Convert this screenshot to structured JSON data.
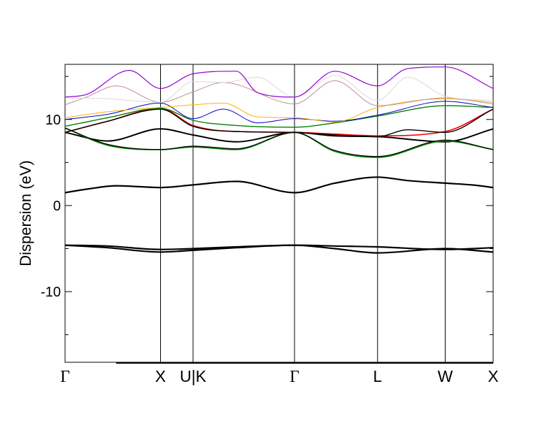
{
  "chart_data": {
    "type": "line",
    "title": "",
    "xlabel": "",
    "ylabel": "Dispersion (eV)",
    "ylim": [
      -18.2,
      16.4
    ],
    "xlim": [
      0,
      1
    ],
    "grid": false,
    "legend": "none",
    "y_ticks": [
      {
        "value": 10,
        "label": "10"
      },
      {
        "value": 0,
        "label": "0"
      },
      {
        "value": -10,
        "label": "-10"
      }
    ],
    "k_points": [
      {
        "pos": 0.0,
        "label": "Γ",
        "greek": true
      },
      {
        "pos": 0.223,
        "label": "X",
        "greek": false
      },
      {
        "pos": 0.299,
        "label": "U|K",
        "greek": false
      },
      {
        "pos": 0.536,
        "label": "Γ",
        "greek": true
      },
      {
        "pos": 0.73,
        "label": "L",
        "greek": false
      },
      {
        "pos": 0.888,
        "label": "W",
        "greek": false
      },
      {
        "pos": 1.0,
        "label": "X",
        "greek": false
      }
    ],
    "series": [
      {
        "color": "#000000",
        "width": 2.2,
        "x": [
          0,
          0.1,
          0.223,
          0.299,
          0.4,
          0.536,
          0.63,
          0.73,
          0.888,
          1.0
        ],
        "y": [
          -4.6,
          -4.9,
          -5.4,
          -5.2,
          -4.9,
          -4.6,
          -5.0,
          -5.5,
          -5.0,
          -5.4
        ]
      },
      {
        "color": "#000000",
        "width": 2.2,
        "x": [
          0,
          0.1,
          0.223,
          0.299,
          0.4,
          0.536,
          0.63,
          0.73,
          0.888,
          1.0
        ],
        "y": [
          -4.6,
          -4.7,
          -5.1,
          -5.0,
          -4.8,
          -4.6,
          -4.7,
          -4.8,
          -5.1,
          -4.9
        ]
      },
      {
        "color": "#000000",
        "width": 2.2,
        "x": [
          0,
          0.05,
          0.12,
          0.223,
          0.299,
          0.4,
          0.536,
          0.63,
          0.73,
          0.8,
          0.888,
          0.95,
          1.0
        ],
        "y": [
          1.5,
          1.9,
          2.3,
          2.1,
          2.4,
          2.8,
          1.5,
          2.6,
          3.3,
          2.9,
          2.6,
          2.4,
          2.1
        ]
      },
      {
        "color": "#000000",
        "width": 2.0,
        "x": [
          0,
          0.1,
          0.223,
          0.299,
          0.4,
          0.536,
          0.63,
          0.73,
          0.888,
          1.0
        ],
        "y": [
          8.5,
          7.5,
          8.9,
          8.2,
          7.4,
          8.5,
          8.1,
          8.0,
          7.4,
          8.9
        ]
      },
      {
        "color": "#008000",
        "width": 1.8,
        "x": [
          0,
          0.1,
          0.223,
          0.299,
          0.4,
          0.536,
          0.63,
          0.73,
          0.888,
          1.0
        ],
        "y": [
          9.0,
          7.0,
          6.5,
          6.8,
          6.5,
          8.5,
          6.3,
          5.6,
          7.5,
          6.5
        ]
      },
      {
        "color": "#000000",
        "width": 1.2,
        "x": [
          0,
          0.1,
          0.223,
          0.299,
          0.4,
          0.536,
          0.63,
          0.73,
          0.888,
          1.0
        ],
        "y": [
          9.0,
          7.1,
          6.5,
          6.9,
          6.6,
          8.5,
          6.4,
          5.7,
          7.6,
          6.5
        ]
      },
      {
        "color": "#ff0000",
        "width": 1.6,
        "x": [
          0,
          0.1,
          0.223,
          0.299,
          0.4,
          0.536,
          0.63,
          0.73,
          0.888,
          1.0
        ],
        "y": [
          8.5,
          9.8,
          11.3,
          9.3,
          8.6,
          8.5,
          8.3,
          8.1,
          8.6,
          11.2
        ]
      },
      {
        "color": "#000000",
        "width": 1.4,
        "x": [
          0,
          0.1,
          0.223,
          0.299,
          0.4,
          0.536,
          0.63,
          0.73,
          0.8,
          0.888,
          1.0
        ],
        "y": [
          8.5,
          9.8,
          11.2,
          9.2,
          8.6,
          8.5,
          8.2,
          8.0,
          8.8,
          8.5,
          11.2
        ]
      },
      {
        "color": "#008000",
        "width": 1.4,
        "x": [
          0,
          0.1,
          0.223,
          0.299,
          0.4,
          0.536,
          0.63,
          0.73,
          0.888,
          1.0
        ],
        "y": [
          9.2,
          10.2,
          11.3,
          9.9,
          9.3,
          9.1,
          9.6,
          10.4,
          11.6,
          11.4
        ]
      },
      {
        "color": "#0000cd",
        "width": 1.0,
        "x": [
          0,
          0.1,
          0.223,
          0.299,
          0.37,
          0.45,
          0.536,
          0.63,
          0.73,
          0.888,
          1.0
        ],
        "y": [
          10.0,
          10.6,
          11.9,
          10.1,
          11.2,
          9.6,
          10.1,
          9.8,
          10.5,
          12.1,
          11.4
        ]
      },
      {
        "color": "#ffb000",
        "width": 1.0,
        "x": [
          0,
          0.1,
          0.223,
          0.299,
          0.37,
          0.45,
          0.536,
          0.63,
          0.73,
          0.888,
          1.0
        ],
        "y": [
          10.2,
          10.9,
          11.4,
          11.7,
          11.9,
          10.3,
          10.2,
          9.7,
          11.4,
          12.4,
          12.0
        ]
      },
      {
        "color": "#bc8f8f",
        "width": 1.0,
        "x": [
          0,
          0.05,
          0.12,
          0.223,
          0.299,
          0.37,
          0.536,
          0.63,
          0.73,
          0.888,
          1.0
        ],
        "y": [
          11.7,
          12.6,
          13.9,
          12.0,
          13.2,
          14.3,
          11.8,
          14.5,
          11.6,
          12.5,
          11.8
        ]
      },
      {
        "color": "#d9d9d9",
        "width": 1.0,
        "x": [
          0,
          0.1,
          0.223,
          0.299,
          0.37,
          0.45,
          0.536,
          0.63,
          0.73,
          0.8,
          0.888,
          1.0
        ],
        "y": [
          12.5,
          12.4,
          12.0,
          14.4,
          14.3,
          14.9,
          12.6,
          15.1,
          12.2,
          14.9,
          12.7,
          12.2
        ]
      },
      {
        "color": "#9400d3",
        "width": 1.2,
        "x": [
          0,
          0.05,
          0.15,
          0.223,
          0.299,
          0.4,
          0.45,
          0.536,
          0.63,
          0.73,
          0.8,
          0.888,
          1.0
        ],
        "y": [
          12.6,
          12.9,
          15.7,
          13.6,
          15.3,
          15.6,
          13.1,
          12.6,
          15.6,
          13.9,
          15.9,
          16.1,
          13.6
        ]
      }
    ]
  }
}
